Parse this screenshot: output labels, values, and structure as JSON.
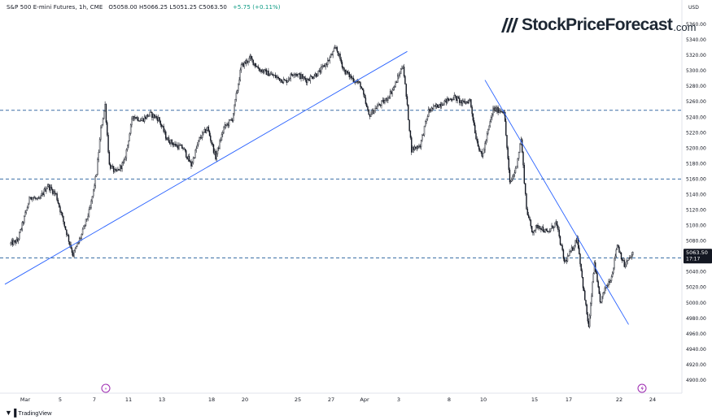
{
  "header": {
    "instrument": "S&P 500 E-mini Futures, 1h, CME",
    "ohlc": "O5058.00 H5066.25 L5051.25 C5063.50",
    "change": "+5.75 (+0.11%)"
  },
  "logo": {
    "brand": "StockPriceForecast",
    "tld": ".com",
    "icon": "slanted-bars-logo-icon"
  },
  "footer": {
    "brand": "TradingView",
    "icon": "tradingview-logo-icon"
  },
  "colors": {
    "candle": "#131722",
    "trendline": "#2962ff",
    "level": "#3b6fa6",
    "price_label_bg": "#131722",
    "event_marker": "#9c27b0"
  },
  "chart_data": {
    "type": "candlestick",
    "currency": "USD",
    "ylim": [
      4880,
      5380
    ],
    "y_ticks": [
      4900,
      4920,
      4940,
      4960,
      4980,
      5000,
      5020,
      5040,
      5060,
      5080,
      5100,
      5120,
      5140,
      5160,
      5180,
      5200,
      5220,
      5240,
      5260,
      5280,
      5300,
      5320,
      5340,
      5360
    ],
    "y_tick_labels": [
      "4900.00",
      "4920.00",
      "4940.00",
      "4960.00",
      "4980.00",
      "5000.00",
      "5020.00",
      "5040.00",
      "5060.00",
      "5080.00",
      "5100.00",
      "5120.00",
      "5140.00",
      "5160.00",
      "5180.00",
      "5200.00",
      "5220.00",
      "5240.00",
      "5260.00",
      "5280.00",
      "5300.00",
      "5320.00",
      "5340.00",
      "5360.00"
    ],
    "x_tick_labels": [
      "Mar",
      "5",
      "7",
      "11",
      "13",
      "18",
      "20",
      "25",
      "27",
      "Apr",
      "3",
      "8",
      "10",
      "15",
      "17",
      "22",
      "24"
    ],
    "last_price": {
      "value": 5063.5,
      "label": "5063.50",
      "countdown": "17:17"
    },
    "horizontal_levels": [
      5249,
      5160,
      5058
    ],
    "trendlines": [
      {
        "from": [
          "Feb 29",
          5024
        ],
        "to": [
          "Apr 4",
          5325
        ]
      },
      {
        "from": [
          "Apr 11",
          5288
        ],
        "to": [
          "Apr 23",
          4972
        ]
      }
    ],
    "price_path": [
      [
        "Feb 29",
        5076
      ],
      [
        "Mar 1",
        5080
      ],
      [
        "Mar 1",
        5105
      ],
      [
        "Mar 4",
        5138
      ],
      [
        "Mar 4",
        5132
      ],
      [
        "Mar 5",
        5152
      ],
      [
        "Mar 5",
        5140
      ],
      [
        "Mar 6",
        5100
      ],
      [
        "Mar 6",
        5062
      ],
      [
        "Mar 7",
        5088
      ],
      [
        "Mar 7",
        5122
      ],
      [
        "Mar 8",
        5168
      ],
      [
        "Mar 8",
        5224
      ],
      [
        "Mar 8",
        5256
      ],
      [
        "Mar 8",
        5178
      ],
      [
        "Mar 11",
        5168
      ],
      [
        "Mar 11",
        5182
      ],
      [
        "Mar 12",
        5242
      ],
      [
        "Mar 12",
        5236
      ],
      [
        "Mar 13",
        5244
      ],
      [
        "Mar 13",
        5238
      ],
      [
        "Mar 14",
        5212
      ],
      [
        "Mar 14",
        5204
      ],
      [
        "Mar 15",
        5200
      ],
      [
        "Mar 15",
        5178
      ],
      [
        "Mar 18",
        5212
      ],
      [
        "Mar 18",
        5226
      ],
      [
        "Mar 19",
        5188
      ],
      [
        "Mar 19",
        5226
      ],
      [
        "Mar 20",
        5238
      ],
      [
        "Mar 20",
        5306
      ],
      [
        "Mar 21",
        5316
      ],
      [
        "Mar 21",
        5302
      ],
      [
        "Mar 22",
        5294
      ],
      [
        "Mar 25",
        5286
      ],
      [
        "Mar 25",
        5298
      ],
      [
        "Mar 26",
        5288
      ],
      [
        "Mar 27",
        5298
      ],
      [
        "Mar 27",
        5312
      ],
      [
        "Mar 28",
        5330
      ],
      [
        "Mar 28",
        5300
      ],
      [
        "Apr 1",
        5290
      ],
      [
        "Apr 1",
        5282
      ],
      [
        "Apr 2",
        5242
      ],
      [
        "Apr 2",
        5254
      ],
      [
        "Apr 3",
        5262
      ],
      [
        "Apr 3",
        5280
      ],
      [
        "Apr 4",
        5308
      ],
      [
        "Apr 4",
        5198
      ],
      [
        "Apr 5",
        5204
      ],
      [
        "Apr 5",
        5248
      ],
      [
        "Apr 8",
        5258
      ],
      [
        "Apr 9",
        5266
      ],
      [
        "Apr 9",
        5258
      ],
      [
        "Apr 10",
        5262
      ],
      [
        "Apr 10",
        5214
      ],
      [
        "Apr 10",
        5188
      ],
      [
        "Apr 11",
        5250
      ],
      [
        "Apr 12",
        5248
      ],
      [
        "Apr 12",
        5154
      ],
      [
        "Apr 12",
        5172
      ],
      [
        "Apr 15",
        5212
      ],
      [
        "Apr 15",
        5122
      ],
      [
        "Apr 15",
        5092
      ],
      [
        "Apr 16",
        5100
      ],
      [
        "Apr 16",
        5090
      ],
      [
        "Apr 17",
        5104
      ],
      [
        "Apr 17",
        5052
      ],
      [
        "Apr 18",
        5068
      ],
      [
        "Apr 18",
        5084
      ],
      [
        "Apr 18",
        5022
      ],
      [
        "Apr 19",
        4968
      ],
      [
        "Apr 19",
        5052
      ],
      [
        "Apr 19",
        5000
      ],
      [
        "Apr 22",
        5020
      ],
      [
        "Apr 22",
        5034
      ],
      [
        "Apr 22",
        5076
      ],
      [
        "Apr 23",
        5048
      ],
      [
        "Apr 23",
        5063.5
      ]
    ]
  }
}
